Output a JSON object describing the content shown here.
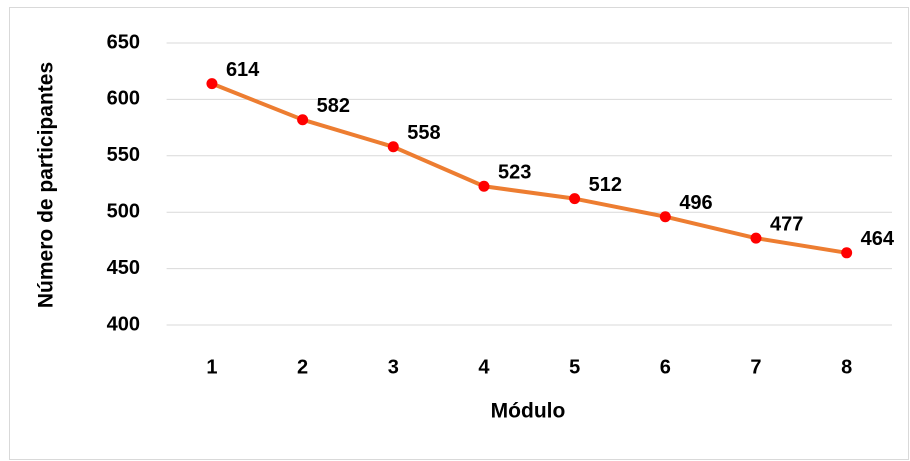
{
  "chart_data": {
    "type": "line",
    "x_label": "Módulo",
    "y_label": "Número de participantes",
    "categories": [
      "1",
      "2",
      "3",
      "4",
      "5",
      "6",
      "7",
      "8"
    ],
    "series": [
      {
        "name": "Número de participantes",
        "color": "#ED7D31",
        "marker_color": "#FF0000",
        "values": [
          614,
          582,
          558,
          523,
          512,
          496,
          477,
          464
        ]
      }
    ],
    "ylim": [
      400,
      650
    ],
    "yticks": [
      400,
      450,
      500,
      550,
      600,
      650
    ],
    "grid": true
  }
}
